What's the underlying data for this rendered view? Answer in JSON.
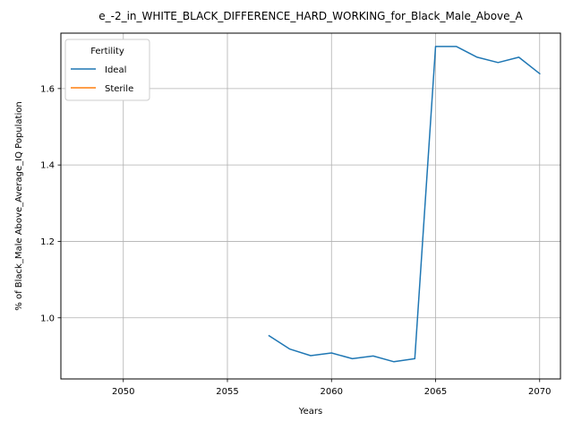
{
  "chart_data": {
    "type": "line",
    "title": "e_-2_in_WHITE_BLACK_DIFFERENCE_HARD_WORKING_for_Black_Male_Above_A",
    "xlabel": "Years",
    "ylabel": "% of Black_Male Above_Average_IQ Population",
    "xlim": [
      2047,
      2071
    ],
    "ylim": [
      0.84,
      1.745
    ],
    "xticks": [
      2050,
      2055,
      2060,
      2065,
      2070
    ],
    "yticks": [
      1.0,
      1.2,
      1.4,
      1.6
    ],
    "ytick_labels": [
      "1.0",
      "1.2",
      "1.4",
      "1.6"
    ],
    "grid": true,
    "legend": {
      "title": "Fertility",
      "placement": "upper-left"
    },
    "series": [
      {
        "name": "Ideal",
        "color": "#1f77b4",
        "x": [
          2057,
          2058,
          2059,
          2060,
          2061,
          2062,
          2063,
          2064,
          2065,
          2066,
          2067,
          2068,
          2069,
          2070
        ],
        "values": [
          0.953,
          0.918,
          0.901,
          0.908,
          0.893,
          0.9,
          0.885,
          0.893,
          1.71,
          1.71,
          1.682,
          1.668,
          1.682,
          1.639
        ]
      },
      {
        "name": "Sterile",
        "color": "#ff7f0e",
        "x": [],
        "values": []
      }
    ]
  }
}
